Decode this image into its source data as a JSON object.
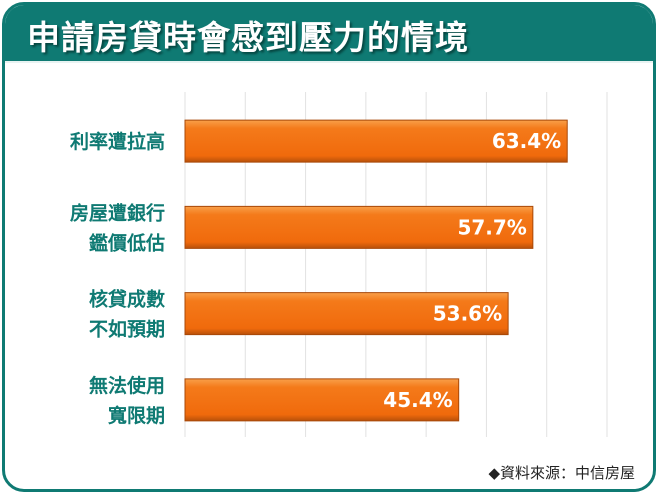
{
  "title": "申請房貸時會感到壓力的情境",
  "source": "◆資料來源：中信房屋",
  "chart_data": {
    "type": "bar",
    "orientation": "horizontal",
    "title": "申請房貸時會感到壓力的情境",
    "categories": [
      [
        "利率遭拉高"
      ],
      [
        "房屋遭銀行",
        "鑑價低估"
      ],
      [
        "核貸成數",
        "不如預期"
      ],
      [
        "無法使用",
        "寬限期"
      ]
    ],
    "values": [
      63.4,
      57.7,
      53.6,
      45.4
    ],
    "data_labels": [
      "63.4%",
      "57.7%",
      "53.6%",
      "45.4%"
    ],
    "xlim": [
      0,
      70
    ],
    "grid": true,
    "bar_color": "#f07012",
    "frame_color": "#0f7a73"
  }
}
